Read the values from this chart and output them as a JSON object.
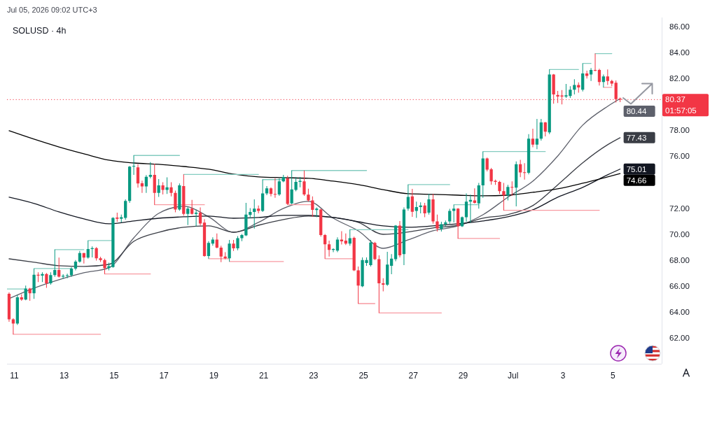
{
  "chart_data": {
    "type": "candlestick",
    "title": "SOLUSD · 4h",
    "annotations": [
      "Jul 05, 2026 09:02 UTC+3",
      "01:57:05"
    ],
    "x": [
      "2026-06-10T19:00",
      "2026-06-10T23:00",
      "2026-06-11T03:00",
      "2026-06-11T07:00",
      "2026-06-11T11:00",
      "2026-06-11T15:00",
      "2026-06-11T19:00",
      "2026-06-11T23:00",
      "2026-06-12T03:00",
      "2026-06-12T07:00",
      "2026-06-12T11:00",
      "2026-06-12T15:00",
      "2026-06-12T19:00",
      "2026-06-12T23:00",
      "2026-06-13T03:00",
      "2026-06-13T07:00",
      "2026-06-13T11:00",
      "2026-06-13T15:00",
      "2026-06-13T19:00",
      "2026-06-13T23:00",
      "2026-06-14T03:00",
      "2026-06-14T07:00",
      "2026-06-14T11:00",
      "2026-06-14T15:00",
      "2026-06-14T19:00",
      "2026-06-14T23:00",
      "2026-06-15T03:00",
      "2026-06-15T07:00",
      "2026-06-15T11:00",
      "2026-06-15T15:00",
      "2026-06-15T19:00",
      "2026-06-15T23:00",
      "2026-06-16T03:00",
      "2026-06-16T07:00",
      "2026-06-16T11:00",
      "2026-06-16T15:00",
      "2026-06-16T19:00",
      "2026-06-16T23:00",
      "2026-06-17T03:00",
      "2026-06-17T07:00",
      "2026-06-17T11:00",
      "2026-06-17T15:00",
      "2026-06-17T19:00",
      "2026-06-17T23:00",
      "2026-06-18T03:00",
      "2026-06-18T07:00",
      "2026-06-18T11:00",
      "2026-06-18T15:00",
      "2026-06-18T19:00",
      "2026-06-18T23:00",
      "2026-06-19T03:00",
      "2026-06-19T07:00",
      "2026-06-19T11:00",
      "2026-06-19T15:00",
      "2026-06-19T19:00",
      "2026-06-19T23:00",
      "2026-06-20T03:00",
      "2026-06-20T07:00",
      "2026-06-20T11:00",
      "2026-06-20T15:00",
      "2026-06-20T19:00",
      "2026-06-20T23:00",
      "2026-06-21T03:00",
      "2026-06-21T07:00",
      "2026-06-21T11:00",
      "2026-06-21T15:00",
      "2026-06-21T19:00",
      "2026-06-21T23:00",
      "2026-06-22T03:00",
      "2026-06-22T07:00",
      "2026-06-22T11:00",
      "2026-06-22T15:00",
      "2026-06-22T19:00",
      "2026-06-22T23:00",
      "2026-06-23T03:00",
      "2026-06-23T07:00",
      "2026-06-23T11:00",
      "2026-06-23T15:00",
      "2026-06-23T19:00",
      "2026-06-23T23:00",
      "2026-06-24T03:00",
      "2026-06-24T07:00",
      "2026-06-24T11:00",
      "2026-06-24T15:00",
      "2026-06-24T19:00",
      "2026-06-24T23:00",
      "2026-06-25T03:00",
      "2026-06-25T07:00",
      "2026-06-25T11:00",
      "2026-06-25T15:00",
      "2026-06-25T19:00",
      "2026-06-25T23:00",
      "2026-06-26T03:00",
      "2026-06-26T07:00",
      "2026-06-26T11:00",
      "2026-06-26T15:00",
      "2026-06-26T19:00",
      "2026-06-26T23:00",
      "2026-06-27T03:00",
      "2026-06-27T07:00",
      "2026-06-27T11:00",
      "2026-06-27T15:00",
      "2026-06-27T19:00",
      "2026-06-27T23:00",
      "2026-06-28T03:00",
      "2026-06-28T07:00",
      "2026-06-28T11:00",
      "2026-06-28T15:00",
      "2026-06-28T19:00",
      "2026-06-28T23:00",
      "2026-06-29T03:00",
      "2026-06-29T07:00",
      "2026-06-29T11:00",
      "2026-06-29T15:00",
      "2026-06-29T19:00",
      "2026-06-29T23:00",
      "2026-06-30T03:00",
      "2026-06-30T07:00",
      "2026-06-30T11:00",
      "2026-06-30T15:00",
      "2026-06-30T19:00",
      "2026-06-30T23:00",
      "2026-07-01T03:00",
      "2026-07-01T07:00",
      "2026-07-01T11:00",
      "2026-07-01T15:00",
      "2026-07-01T19:00",
      "2026-07-01T23:00",
      "2026-07-02T03:00",
      "2026-07-02T07:00",
      "2026-07-02T11:00",
      "2026-07-02T15:00",
      "2026-07-02T19:00",
      "2026-07-02T23:00",
      "2026-07-03T03:00",
      "2026-07-03T07:00",
      "2026-07-03T11:00",
      "2026-07-03T15:00",
      "2026-07-03T19:00",
      "2026-07-03T23:00",
      "2026-07-04T03:00",
      "2026-07-04T07:00",
      "2026-07-04T11:00",
      "2026-07-04T15:00",
      "2026-07-04T19:00",
      "2026-07-04T23:00",
      "2026-07-05T03:00",
      "2026-07-05T07:00"
    ],
    "ohlc": [
      [
        65.4,
        65.5,
        63.24,
        63.42
      ],
      [
        63.42,
        63.5,
        62.27,
        63.1
      ],
      [
        63.1,
        65.3,
        63.0,
        65.13
      ],
      [
        65.13,
        65.36,
        64.86,
        64.95
      ],
      [
        64.95,
        66.03,
        64.9,
        65.8
      ],
      [
        65.8,
        65.85,
        64.86,
        65.43
      ],
      [
        65.43,
        67.34,
        65.0,
        66.87
      ],
      [
        66.87,
        67.05,
        66.3,
        66.8
      ],
      [
        66.8,
        67.05,
        66.3,
        66.92
      ],
      [
        66.92,
        67.0,
        65.85,
        66.2
      ],
      [
        66.2,
        67.05,
        66.1,
        66.84
      ],
      [
        66.84,
        68.8,
        66.7,
        67.23
      ],
      [
        67.23,
        68.18,
        66.65,
        66.72
      ],
      [
        66.72,
        66.9,
        66.55,
        66.78
      ],
      [
        66.78,
        66.95,
        66.6,
        66.82
      ],
      [
        66.82,
        67.45,
        66.7,
        67.34
      ],
      [
        67.34,
        68.0,
        67.2,
        67.88
      ],
      [
        67.88,
        68.7,
        67.8,
        68.54
      ],
      [
        68.54,
        68.55,
        67.73,
        68.18
      ],
      [
        68.18,
        69.5,
        68.1,
        68.85
      ],
      [
        68.85,
        69.05,
        68.2,
        68.92
      ],
      [
        68.92,
        69.0,
        67.95,
        68.13
      ],
      [
        68.13,
        68.25,
        67.85,
        68.0
      ],
      [
        68.0,
        68.1,
        66.92,
        67.38
      ],
      [
        67.38,
        67.8,
        67.2,
        67.52
      ],
      [
        67.46,
        71.3,
        67.4,
        71.24
      ],
      [
        71.28,
        71.65,
        70.95,
        71.18
      ],
      [
        71.18,
        71.5,
        70.9,
        71.3
      ],
      [
        71.24,
        72.68,
        71.1,
        72.56
      ],
      [
        72.56,
        75.25,
        72.4,
        75.2
      ],
      [
        75.2,
        76.06,
        74.57,
        75.25
      ],
      [
        75.15,
        75.38,
        73.58,
        73.9
      ],
      [
        73.92,
        74.12,
        73.17,
        73.67
      ],
      [
        73.67,
        74.55,
        73.17,
        74.42
      ],
      [
        74.42,
        75.55,
        74.3,
        74.57
      ],
      [
        74.57,
        75.43,
        72.26,
        73.17
      ],
      [
        73.17,
        74.24,
        72.86,
        73.76
      ],
      [
        73.76,
        74.0,
        73.05,
        73.4
      ],
      [
        73.4,
        74.38,
        73.1,
        73.61
      ],
      [
        73.61,
        74.0,
        72.9,
        73.17
      ],
      [
        73.17,
        73.35,
        71.68,
        71.9
      ],
      [
        71.9,
        73.9,
        71.8,
        73.76
      ],
      [
        73.7,
        74.6,
        71.42,
        71.55
      ],
      [
        71.55,
        72.1,
        70.7,
        71.96
      ],
      [
        71.96,
        72.63,
        71.5,
        71.55
      ],
      [
        71.55,
        71.9,
        70.6,
        71.65
      ],
      [
        71.65,
        72.05,
        70.65,
        70.82
      ],
      [
        70.88,
        71.15,
        68.25,
        68.31
      ],
      [
        68.31,
        69.45,
        68.1,
        69.32
      ],
      [
        69.27,
        69.75,
        69.1,
        69.57
      ],
      [
        69.57,
        70.04,
        68.9,
        68.96
      ],
      [
        68.96,
        69.1,
        67.83,
        68.27
      ],
      [
        68.27,
        68.6,
        68.05,
        68.13
      ],
      [
        68.13,
        69.55,
        67.88,
        69.27
      ],
      [
        69.27,
        69.55,
        68.7,
        68.9
      ],
      [
        68.9,
        69.85,
        68.75,
        69.68
      ],
      [
        69.68,
        70.0,
        69.45,
        69.93
      ],
      [
        69.9,
        72.41,
        69.85,
        71.5
      ],
      [
        71.48,
        72.0,
        71.2,
        71.7
      ],
      [
        71.7,
        72.68,
        70.43,
        71.96
      ],
      [
        71.96,
        72.2,
        71.6,
        71.78
      ],
      [
        71.78,
        74.2,
        71.7,
        73.13
      ],
      [
        73.13,
        73.7,
        73.0,
        73.53
      ],
      [
        73.53,
        73.6,
        72.9,
        73.1
      ],
      [
        73.1,
        74.3,
        72.8,
        73.05
      ],
      [
        73.05,
        74.3,
        72.95,
        74.07
      ],
      [
        74.07,
        74.57,
        74.0,
        74.4
      ],
      [
        74.3,
        74.5,
        72.26,
        72.32
      ],
      [
        72.37,
        74.9,
        72.3,
        73.45
      ],
      [
        73.4,
        74.4,
        73.3,
        74.03
      ],
      [
        74.03,
        74.4,
        73.6,
        74.1
      ],
      [
        74.07,
        74.9,
        72.95,
        73.05
      ],
      [
        73.04,
        73.5,
        72.5,
        72.6
      ],
      [
        72.6,
        72.9,
        71.33,
        71.87
      ],
      [
        71.85,
        72.05,
        71.3,
        71.96
      ],
      [
        71.9,
        71.95,
        69.8,
        69.93
      ],
      [
        69.93,
        70.0,
        68.1,
        69.21
      ],
      [
        69.21,
        69.5,
        68.27,
        68.78
      ],
      [
        68.78,
        68.9,
        68.6,
        68.84
      ],
      [
        68.72,
        69.75,
        68.6,
        69.57
      ],
      [
        69.57,
        70.22,
        69.2,
        69.44
      ],
      [
        69.5,
        70.05,
        69.15,
        69.27
      ],
      [
        69.27,
        70.34,
        69.1,
        69.68
      ],
      [
        69.71,
        69.8,
        67.15,
        67.2
      ],
      [
        67.2,
        67.5,
        64.64,
        66.03
      ],
      [
        65.97,
        68.2,
        65.9,
        68.0
      ],
      [
        67.77,
        68.2,
        67.55,
        68.0
      ],
      [
        67.6,
        69.55,
        67.5,
        69.35
      ],
      [
        69.32,
        69.4,
        68.0,
        68.06
      ],
      [
        68.06,
        68.36,
        63.92,
        66.2
      ],
      [
        66.2,
        66.6,
        65.58,
        66.1
      ],
      [
        66.1,
        68.63,
        66.0,
        67.65
      ],
      [
        67.55,
        68.45,
        66.9,
        68.1
      ],
      [
        68.06,
        70.7,
        67.9,
        70.65
      ],
      [
        70.65,
        71.0,
        68.2,
        68.36
      ],
      [
        68.45,
        72.05,
        67.6,
        71.9
      ],
      [
        71.96,
        73.81,
        71.8,
        72.86
      ],
      [
        72.9,
        73.49,
        71.33,
        71.72
      ],
      [
        71.78,
        72.5,
        71.25,
        72.08
      ],
      [
        72.08,
        72.45,
        71.6,
        72.2
      ],
      [
        72.2,
        72.4,
        71.3,
        71.6
      ],
      [
        71.65,
        73.09,
        71.5,
        72.68
      ],
      [
        72.68,
        73.09,
        70.8,
        70.97
      ],
      [
        70.97,
        71.5,
        70.2,
        70.43
      ],
      [
        70.4,
        70.95,
        70.2,
        70.76
      ],
      [
        70.76,
        71.05,
        70.6,
        70.9
      ],
      [
        70.97,
        71.95,
        70.8,
        71.78
      ],
      [
        71.78,
        72.26,
        70.9,
        71.96
      ],
      [
        71.96,
        72.0,
        69.66,
        70.6
      ],
      [
        70.6,
        71.35,
        70.55,
        71.3
      ],
      [
        71.3,
        73.13,
        70.95,
        72.5
      ],
      [
        72.5,
        73.04,
        70.88,
        72.63
      ],
      [
        72.6,
        73.52,
        72.35,
        72.4
      ],
      [
        72.37,
        73.94,
        71.96,
        73.76
      ],
      [
        73.76,
        76.36,
        72.8,
        75.83
      ],
      [
        75.83,
        75.9,
        74.84,
        74.97
      ],
      [
        75.0,
        75.1,
        73.81,
        74.07
      ],
      [
        74.1,
        74.2,
        73.8,
        74.03
      ],
      [
        74.03,
        74.1,
        73.1,
        73.31
      ],
      [
        73.31,
        73.94,
        71.83,
        72.99
      ],
      [
        72.99,
        73.8,
        72.6,
        73.63
      ],
      [
        73.63,
        74.07,
        72.95,
        73.58
      ],
      [
        73.58,
        75.6,
        72.14,
        75.38
      ],
      [
        75.38,
        75.73,
        74.39,
        74.75
      ],
      [
        74.77,
        75.47,
        74.2,
        74.72
      ],
      [
        74.72,
        77.71,
        74.6,
        77.36
      ],
      [
        77.36,
        78.13,
        76.7,
        76.9
      ],
      [
        76.9,
        78.88,
        76.55,
        77.36
      ],
      [
        77.36,
        78.88,
        77.2,
        78.61
      ],
      [
        78.61,
        78.65,
        77.53,
        77.9
      ],
      [
        77.84,
        82.69,
        77.7,
        82.3
      ],
      [
        82.3,
        82.35,
        80.05,
        80.77
      ],
      [
        80.72,
        81.04,
        80.1,
        80.6
      ],
      [
        80.68,
        81.1,
        80.0,
        80.6
      ],
      [
        80.6,
        81.58,
        80.5,
        80.7
      ],
      [
        80.65,
        81.4,
        80.5,
        81.13
      ],
      [
        81.13,
        81.94,
        80.77,
        81.49
      ],
      [
        81.49,
        81.7,
        80.9,
        81.3
      ],
      [
        81.13,
        83.16,
        81.0,
        82.39
      ],
      [
        82.39,
        82.6,
        82.0,
        82.2
      ],
      [
        82.3,
        82.8,
        81.8,
        82.66
      ],
      [
        82.66,
        83.92,
        82.55,
        82.6
      ],
      [
        82.66,
        82.75,
        81.45,
        81.72
      ],
      [
        81.72,
        82.3,
        81.31,
        82.15
      ],
      [
        82.15,
        82.69,
        81.5,
        81.8
      ],
      [
        81.8,
        81.9,
        81.4,
        81.6
      ],
      [
        81.67,
        81.85,
        80.14,
        80.4
      ],
      [
        80.44,
        80.53,
        80.18,
        80.37
      ]
    ],
    "colors": [
      "#f23645",
      "#f23645",
      "#089981",
      "#f23645",
      "#089981",
      "#f23645",
      "#089981",
      "#f23645",
      "#089981",
      "#f23645",
      "#089981",
      "#089981",
      "#f23645",
      "#089981",
      "#089981",
      "#089981",
      "#089981",
      "#089981",
      "#f23645",
      "#089981",
      "#089981",
      "#f23645",
      "#f23645",
      "#f23645",
      "#089981",
      "#089981",
      "#f23645",
      "#089981",
      "#089981",
      "#089981",
      "#089981",
      "#f23645",
      "#f23645",
      "#089981",
      "#089981",
      "#f23645",
      "#089981",
      "#f23645",
      "#089981",
      "#f23645",
      "#f23645",
      "#089981",
      "#f23645",
      "#089981",
      "#f23645",
      "#089981",
      "#f23645",
      "#f23645",
      "#089981",
      "#089981",
      "#f23645",
      "#f23645",
      "#f23645",
      "#089981",
      "#f23645",
      "#089981",
      "#089981",
      "#089981",
      "#089981",
      "#089981",
      "#f23645",
      "#089981",
      "#089981",
      "#f23645",
      "#f23645",
      "#089981",
      "#089981",
      "#f23645",
      "#089981",
      "#089981",
      "#089981",
      "#f23645",
      "#f23645",
      "#f23645",
      "#089981",
      "#f23645",
      "#f23645",
      "#f23645",
      "#089981",
      "#089981",
      "#f23645",
      "#f23645",
      "#089981",
      "#f23645",
      "#f23645",
      "#089981",
      "#089981",
      "#089981",
      "#f23645",
      "#f23645",
      "#f23645",
      "#089981",
      "#089981",
      "#089981",
      "#f23645",
      "#089981",
      "#089981",
      "#f23645",
      "#089981",
      "#089981",
      "#f23645",
      "#089981",
      "#f23645",
      "#f23645",
      "#089981",
      "#089981",
      "#089981",
      "#089981",
      "#f23645",
      "#089981",
      "#089981",
      "#089981",
      "#f23645",
      "#089981",
      "#089981",
      "#f23645",
      "#f23645",
      "#f23645",
      "#f23645",
      "#f23645",
      "#089981",
      "#f23645",
      "#089981",
      "#f23645",
      "#f23645",
      "#089981",
      "#f23645",
      "#089981",
      "#089981",
      "#f23645",
      "#089981",
      "#f23645",
      "#f23645",
      "#f23645",
      "#089981",
      "#089981",
      "#089981",
      "#f23645",
      "#089981",
      "#f23645",
      "#089981",
      "#f23645",
      "#f23645",
      "#089981",
      "#f23645",
      "#f23645",
      "#f23645",
      "#f23645"
    ],
    "series": [
      {
        "type": "line",
        "color": "#5d606b",
        "x": [
          "2026-06-10T19:00",
          "2026-06-11T19:00",
          "2026-06-12T19:00",
          "2026-06-13T19:00",
          "2026-06-14T19:00",
          "2026-06-15T19:00",
          "2026-06-16T19:00",
          "2026-06-17T19:00",
          "2026-06-18T19:00",
          "2026-06-19T19:00",
          "2026-06-20T19:00",
          "2026-06-21T19:00",
          "2026-06-22T19:00",
          "2026-06-23T19:00",
          "2026-06-24T19:00",
          "2026-06-25T19:00",
          "2026-06-26T19:00",
          "2026-06-27T19:00",
          "2026-06-28T19:00",
          "2026-06-29T19:00",
          "2026-06-30T19:00",
          "2026-07-01T19:00",
          "2026-07-02T19:00",
          "2026-07-03T19:00",
          "2026-07-04T19:00",
          "2026-07-05T07:00"
        ],
        "values": [
          65.02,
          65.83,
          66.48,
          67.02,
          67.4,
          69.71,
          71.6,
          72.14,
          71.33,
          70.14,
          70.9,
          71.98,
          72.52,
          71.22,
          70.25,
          68.9,
          69.55,
          70.25,
          70.63,
          71.49,
          72.84,
          74.08,
          76.02,
          78.4,
          79.85,
          80.44
        ],
        "value_labels": [
          null,
          null,
          null,
          null,
          null,
          null,
          null,
          null,
          null,
          null,
          null,
          null,
          null,
          null,
          null,
          null,
          null,
          null,
          null,
          null,
          null,
          null,
          null,
          null,
          null,
          "80.44"
        ]
      },
      {
        "type": "line",
        "color": "#3a3d45",
        "x": [
          "2026-06-10T19:00",
          "2026-06-11T19:00",
          "2026-06-12T19:00",
          "2026-06-13T19:00",
          "2026-06-14T19:00",
          "2026-06-15T19:00",
          "2026-06-16T19:00",
          "2026-06-17T19:00",
          "2026-06-18T19:00",
          "2026-06-19T19:00",
          "2026-06-20T19:00",
          "2026-06-21T19:00",
          "2026-06-22T19:00",
          "2026-06-23T19:00",
          "2026-06-24T19:00",
          "2026-06-25T19:00",
          "2026-06-26T19:00",
          "2026-06-27T19:00",
          "2026-06-28T19:00",
          "2026-06-29T19:00",
          "2026-06-30T19:00",
          "2026-07-01T19:00",
          "2026-07-02T19:00",
          "2026-07-03T19:00",
          "2026-07-04T19:00",
          "2026-07-05T07:00"
        ],
        "values": [
          68.09,
          67.83,
          67.56,
          67.5,
          67.66,
          69.44,
          70.14,
          70.52,
          70.63,
          70.14,
          70.68,
          71.12,
          71.39,
          71.28,
          70.9,
          69.98,
          70.16,
          70.47,
          70.68,
          71.22,
          71.5,
          72.2,
          73.8,
          75.5,
          76.89,
          77.43
        ],
        "value_labels": [
          null,
          null,
          null,
          null,
          null,
          null,
          null,
          null,
          null,
          null,
          null,
          null,
          null,
          null,
          null,
          null,
          null,
          null,
          null,
          null,
          null,
          null,
          null,
          null,
          null,
          "77.43"
        ]
      },
      {
        "type": "line",
        "color": "#131722",
        "x": [
          "2026-06-10T19:00",
          "2026-06-11T19:00",
          "2026-06-12T19:00",
          "2026-06-13T19:00",
          "2026-06-14T19:00",
          "2026-06-15T19:00",
          "2026-06-16T19:00",
          "2026-06-17T19:00",
          "2026-06-18T19:00",
          "2026-06-19T19:00",
          "2026-06-20T19:00",
          "2026-06-21T19:00",
          "2026-06-22T19:00",
          "2026-06-23T19:00",
          "2026-06-24T19:00",
          "2026-06-25T19:00",
          "2026-06-26T19:00",
          "2026-06-27T19:00",
          "2026-06-28T19:00",
          "2026-06-29T19:00",
          "2026-06-30T19:00",
          "2026-07-01T19:00",
          "2026-07-02T19:00",
          "2026-07-03T19:00",
          "2026-07-04T19:00",
          "2026-07-05T07:00"
        ],
        "values": [
          72.84,
          72.36,
          71.71,
          71.17,
          70.79,
          71.01,
          71.22,
          71.33,
          71.39,
          71.22,
          71.28,
          71.44,
          71.44,
          71.28,
          70.95,
          70.63,
          70.52,
          70.63,
          70.79,
          71.01,
          71.33,
          71.87,
          72.84,
          73.6,
          74.57,
          75.01
        ],
        "value_labels": [
          null,
          null,
          null,
          null,
          null,
          null,
          null,
          null,
          null,
          null,
          null,
          null,
          null,
          null,
          null,
          null,
          null,
          null,
          null,
          null,
          null,
          null,
          null,
          null,
          null,
          "75.01"
        ]
      },
      {
        "type": "line",
        "color": "#000000",
        "x": [
          "2026-06-10T19:00",
          "2026-06-11T19:00",
          "2026-06-12T19:00",
          "2026-06-13T19:00",
          "2026-06-14T19:00",
          "2026-06-15T19:00",
          "2026-06-16T19:00",
          "2026-06-17T19:00",
          "2026-06-18T19:00",
          "2026-06-19T19:00",
          "2026-06-20T19:00",
          "2026-06-21T19:00",
          "2026-06-22T19:00",
          "2026-06-23T19:00",
          "2026-06-24T19:00",
          "2026-06-25T19:00",
          "2026-06-26T19:00",
          "2026-06-27T19:00",
          "2026-06-28T19:00",
          "2026-06-29T19:00",
          "2026-06-30T19:00",
          "2026-07-01T19:00",
          "2026-07-02T19:00",
          "2026-07-03T19:00",
          "2026-07-04T19:00",
          "2026-07-05T07:00"
        ],
        "values": [
          77.97,
          77.32,
          76.72,
          76.19,
          75.7,
          75.48,
          75.38,
          75.21,
          75.0,
          74.62,
          74.41,
          74.35,
          74.3,
          74.08,
          73.81,
          73.43,
          73.11,
          73.06,
          73.0,
          72.95,
          73.0,
          73.22,
          73.49,
          73.92,
          74.41,
          74.66
        ],
        "value_labels": [
          null,
          null,
          null,
          null,
          null,
          null,
          null,
          null,
          null,
          null,
          null,
          null,
          null,
          null,
          null,
          null,
          null,
          null,
          null,
          null,
          null,
          null,
          null,
          null,
          null,
          "74.66"
        ]
      },
      {
        "type": "line",
        "color": "#84ccc0",
        "x": [
          "2026-06-10T17:00",
          "2026-06-11T11:00",
          null,
          "2026-06-11T19:00",
          "2026-06-13T07:00",
          null,
          "2026-06-12T15:00",
          "2026-06-13T19:00",
          null,
          "2026-06-13T23:00",
          "2026-06-14T23:00",
          null,
          "2026-06-15T19:00",
          "2026-06-17T15:00",
          null,
          "2026-06-17T19:00",
          "2026-06-20T19:00",
          null,
          "2026-06-20T23:00",
          "2026-06-21T19:00",
          null,
          "2026-06-22T03:00",
          "2026-06-25T03:00",
          null,
          "2026-06-24T11:00",
          "2026-06-26T19:00",
          null,
          "2026-06-26T19:00",
          "2026-06-28T11:00",
          null,
          "2026-06-28T15:00",
          "2026-06-29T15:00",
          null,
          "2026-06-29T19:00",
          "2026-07-02T07:00",
          null,
          "2026-07-02T11:00",
          "2026-07-03T15:00",
          null,
          "2026-07-03T19:00",
          "2026-07-04T03:00",
          null,
          "2026-07-04T07:00",
          "2026-07-04T23:00"
        ],
        "values": [
          65.76,
          65.76,
          null,
          67.34,
          67.34,
          null,
          68.8,
          68.8,
          null,
          69.5,
          69.5,
          null,
          76.06,
          76.06,
          null,
          74.6,
          74.6,
          null,
          74.2,
          74.2,
          null,
          74.9,
          74.9,
          null,
          70.34,
          70.34,
          null,
          73.81,
          73.81,
          null,
          72.26,
          72.26,
          null,
          76.36,
          76.36,
          null,
          82.69,
          82.69,
          null,
          83.16,
          83.16,
          null,
          83.92,
          83.92
        ]
      },
      {
        "type": "line",
        "color": "#f89aa2",
        "x": [
          "2026-06-10T23:00",
          "2026-06-14T11:00",
          null,
          "2026-06-14T15:00",
          "2026-06-16T11:00",
          null,
          "2026-06-16T15:00",
          "2026-06-18T15:00",
          null,
          "2026-06-18T19:00",
          "2026-06-19T15:00",
          null,
          "2026-06-19T15:00",
          "2026-06-21T19:00",
          null,
          "2026-06-21T23:00",
          "2026-06-22T23:00",
          null,
          "2026-06-23T11:00",
          "2026-06-24T15:00",
          null,
          "2026-06-24T19:00",
          "2026-06-25T11:00",
          null,
          "2026-06-25T15:00",
          "2026-06-28T03:00",
          null,
          "2026-06-28T19:00",
          "2026-06-30T11:00",
          null,
          "2026-06-30T15:00",
          "2026-07-04T11:00",
          null,
          "2026-07-04T15:00",
          "2026-07-04T23:00"
        ],
        "values": [
          62.27,
          62.27,
          null,
          66.92,
          66.92,
          null,
          72.26,
          72.26,
          null,
          68.1,
          68.1,
          null,
          67.88,
          67.88,
          null,
          72.26,
          72.26,
          null,
          68.1,
          68.1,
          null,
          64.64,
          64.64,
          null,
          63.92,
          63.92,
          null,
          69.66,
          69.66,
          null,
          71.83,
          71.83,
          null,
          81.31,
          81.31
        ]
      }
    ],
    "xlim": [
      "2026-06-10T17:00",
      "2026-07-06T23:00"
    ],
    "xticks": [
      {
        "value": "2026-06-11",
        "label": "11"
      },
      {
        "value": "2026-06-13",
        "label": "13"
      },
      {
        "value": "2026-06-15",
        "label": "15"
      },
      {
        "value": "2026-06-17",
        "label": "17"
      },
      {
        "value": "2026-06-19",
        "label": "19"
      },
      {
        "value": "2026-06-21",
        "label": "21"
      },
      {
        "value": "2026-06-23",
        "label": "23"
      },
      {
        "value": "2026-06-25",
        "label": "25"
      },
      {
        "value": "2026-06-27",
        "label": "27"
      },
      {
        "value": "2026-06-29",
        "label": "29"
      },
      {
        "value": "2026-07-01",
        "label": "Jul"
      },
      {
        "value": "2026-07-03",
        "label": "3"
      },
      {
        "value": "2026-07-05",
        "label": "5"
      }
    ],
    "ylim": [
      60,
      86.7
    ],
    "yticks": [
      {
        "value": 62,
        "label": "62.00"
      },
      {
        "value": 64,
        "label": "64.00"
      },
      {
        "value": 66,
        "label": "66.00"
      },
      {
        "value": 68,
        "label": "68.00"
      },
      {
        "value": 70,
        "label": "70.00"
      },
      {
        "value": 72,
        "label": "72.00"
      },
      {
        "value": 76,
        "label": "76.00"
      },
      {
        "value": 78,
        "label": "78.00"
      },
      {
        "value": 82,
        "label": "82.00"
      },
      {
        "value": 84,
        "label": "84.00"
      },
      {
        "value": 86,
        "label": "86.00"
      }
    ],
    "ref_lines": [
      {
        "axis": "y",
        "value": 80.37,
        "label": "80.37",
        "color": "#f23645",
        "line_style": "dotted"
      }
    ]
  }
}
